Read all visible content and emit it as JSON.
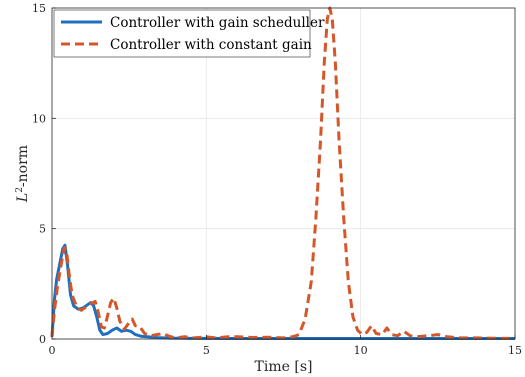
{
  "chart_data": {
    "type": "line",
    "xlabel": "Time [s]",
    "ylabel_base": "L",
    "ylabel_sup": "2",
    "ylabel_suffix": "-norm",
    "xlim": [
      0,
      15
    ],
    "ylim": [
      0,
      15
    ],
    "xticks": [
      0,
      5,
      10,
      15
    ],
    "yticks": [
      0,
      5,
      10,
      15
    ],
    "grid": true,
    "legend_position": "top-left",
    "series": [
      {
        "name": "Controller with gain scheduller",
        "color": "#1f6fbf",
        "style": "solid",
        "points": [
          [
            0,
            0.1
          ],
          [
            0.08,
            1.8
          ],
          [
            0.15,
            2.7
          ],
          [
            0.25,
            3.4
          ],
          [
            0.35,
            4.1
          ],
          [
            0.42,
            4.25
          ],
          [
            0.5,
            3.4
          ],
          [
            0.6,
            2.0
          ],
          [
            0.7,
            1.5
          ],
          [
            0.85,
            1.35
          ],
          [
            1.0,
            1.4
          ],
          [
            1.15,
            1.55
          ],
          [
            1.25,
            1.65
          ],
          [
            1.35,
            1.5
          ],
          [
            1.45,
            1.0
          ],
          [
            1.55,
            0.4
          ],
          [
            1.65,
            0.2
          ],
          [
            1.8,
            0.25
          ],
          [
            1.95,
            0.4
          ],
          [
            2.1,
            0.5
          ],
          [
            2.25,
            0.35
          ],
          [
            2.4,
            0.4
          ],
          [
            2.55,
            0.35
          ],
          [
            2.7,
            0.2
          ],
          [
            2.9,
            0.12
          ],
          [
            3.1,
            0.1
          ],
          [
            3.4,
            0.06
          ],
          [
            3.8,
            0.04
          ],
          [
            4.5,
            0.03
          ],
          [
            6,
            0.02
          ],
          [
            8,
            0.02
          ],
          [
            10,
            0.02
          ],
          [
            12,
            0.02
          ],
          [
            15,
            0.02
          ]
        ]
      },
      {
        "name": "Controller with constant gain",
        "color": "#d4572a",
        "style": "dashed",
        "points": [
          [
            0,
            0.1
          ],
          [
            0.08,
            1.3
          ],
          [
            0.18,
            2.4
          ],
          [
            0.3,
            3.4
          ],
          [
            0.4,
            4.15
          ],
          [
            0.47,
            4.0
          ],
          [
            0.55,
            3.0
          ],
          [
            0.65,
            2.0
          ],
          [
            0.8,
            1.45
          ],
          [
            0.95,
            1.3
          ],
          [
            1.1,
            1.45
          ],
          [
            1.25,
            1.6
          ],
          [
            1.4,
            1.7
          ],
          [
            1.5,
            1.2
          ],
          [
            1.6,
            0.55
          ],
          [
            1.7,
            0.5
          ],
          [
            1.8,
            1.05
          ],
          [
            1.9,
            1.65
          ],
          [
            2.0,
            1.85
          ],
          [
            2.1,
            1.4
          ],
          [
            2.2,
            0.8
          ],
          [
            2.35,
            0.45
          ],
          [
            2.5,
            0.75
          ],
          [
            2.6,
            0.9
          ],
          [
            2.7,
            0.6
          ],
          [
            2.85,
            0.55
          ],
          [
            3.0,
            0.25
          ],
          [
            3.2,
            0.15
          ],
          [
            3.4,
            0.2
          ],
          [
            3.6,
            0.25
          ],
          [
            3.8,
            0.12
          ],
          [
            4.0,
            0.05
          ],
          [
            4.3,
            0.1
          ],
          [
            4.6,
            0.05
          ],
          [
            5.0,
            0.1
          ],
          [
            5.3,
            0.05
          ],
          [
            5.7,
            0.1
          ],
          [
            6.0,
            0.1
          ],
          [
            6.5,
            0.07
          ],
          [
            7.0,
            0.08
          ],
          [
            7.5,
            0.05
          ],
          [
            7.8,
            0.1
          ],
          [
            8.0,
            0.2
          ],
          [
            8.2,
            0.9
          ],
          [
            8.4,
            2.6
          ],
          [
            8.55,
            5.5
          ],
          [
            8.7,
            9.0
          ],
          [
            8.82,
            12.5
          ],
          [
            8.92,
            14.5
          ],
          [
            9.0,
            15.0
          ],
          [
            9.08,
            14.5
          ],
          [
            9.18,
            12.5
          ],
          [
            9.3,
            9.0
          ],
          [
            9.45,
            5.5
          ],
          [
            9.6,
            2.6
          ],
          [
            9.75,
            1.0
          ],
          [
            9.9,
            0.4
          ],
          [
            10.05,
            0.2
          ],
          [
            10.2,
            0.3
          ],
          [
            10.35,
            0.6
          ],
          [
            10.5,
            0.25
          ],
          [
            10.7,
            0.2
          ],
          [
            10.85,
            0.5
          ],
          [
            11.0,
            0.2
          ],
          [
            11.2,
            0.15
          ],
          [
            11.4,
            0.35
          ],
          [
            11.6,
            0.15
          ],
          [
            11.8,
            0.1
          ],
          [
            12.2,
            0.15
          ],
          [
            12.5,
            0.2
          ],
          [
            12.8,
            0.1
          ],
          [
            13.2,
            0.05
          ],
          [
            13.8,
            0.05
          ],
          [
            14.5,
            0.03
          ],
          [
            15,
            0.03
          ]
        ]
      }
    ]
  }
}
